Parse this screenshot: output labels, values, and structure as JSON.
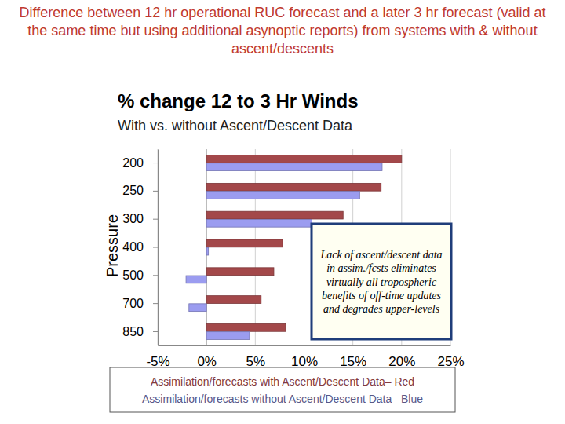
{
  "chart_data": {
    "type": "bar",
    "orientation": "horizontal",
    "title": "% change 12 to 3 Hr Winds",
    "subtitle": "With vs. without Ascent/Descent Data",
    "y_label": "Pressure",
    "categories": [
      "200",
      "250",
      "300",
      "400",
      "500",
      "700",
      "850"
    ],
    "series": [
      {
        "name": "Assimilation/forecasts with Ascent/Descent Data– Red",
        "color": "#a3484a",
        "values": [
          20,
          17.9,
          14,
          7.8,
          6.9,
          5.6,
          8.1
        ]
      },
      {
        "name": "Assimilation/forecasts without Ascent/Descent Data– Blue",
        "color": "#9b9cf0",
        "values": [
          18,
          15.7,
          10.8,
          0.2,
          -2.1,
          -1.8,
          4.4
        ]
      }
    ],
    "xlim": [
      -5,
      25
    ],
    "xticks": [
      {
        "value": -5,
        "label": "-5%"
      },
      {
        "value": 0,
        "label": "0%"
      },
      {
        "value": 5,
        "label": "5%"
      },
      {
        "value": 10,
        "label": "10%"
      },
      {
        "value": 15,
        "label": "15%"
      },
      {
        "value": 20,
        "label": "20%"
      },
      {
        "value": 25,
        "label": "25%"
      }
    ],
    "grid": true,
    "legend": "bottom",
    "annotations": [
      "Difference between 12 hr operational RUC forecast and a later 3 hr forecast (valid at the same time but using additional asynoptic reports) from systems with & without ascent/descents",
      "Lack of ascent/descent data in assim./fcsts eliminates virtually all tropospheric benefits of off-time updates and degrades upper-levels"
    ]
  }
}
